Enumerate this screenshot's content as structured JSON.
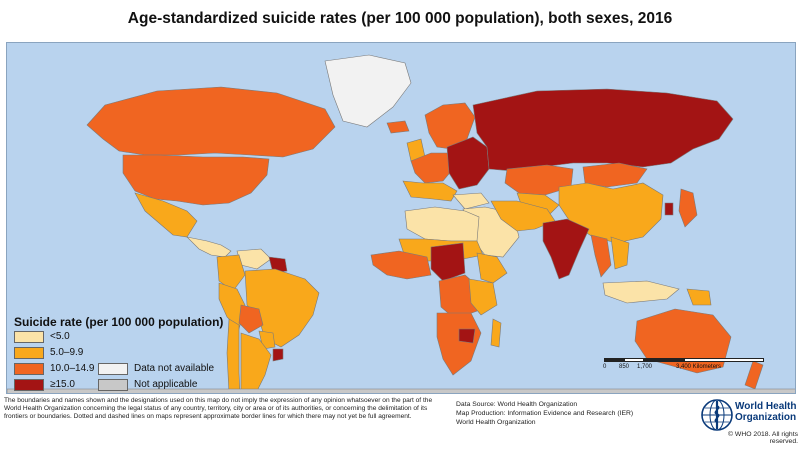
{
  "title": "Age-standardized suicide rates (per 100 000 population), both sexes, 2016",
  "legend": {
    "title": "Suicide rate (per 100 000 population)",
    "items": [
      {
        "label": "<5.0",
        "color": "#fbe3a8"
      },
      {
        "label": "5.0–9.9",
        "color": "#f9a81b"
      },
      {
        "label": "10.0–14.9",
        "color": "#f06521"
      },
      {
        "label": "≥15.0",
        "color": "#a31414"
      },
      {
        "label": "Data not available",
        "color": "#f2f2f2"
      },
      {
        "label": "Not applicable",
        "color": "#c8c8c8"
      }
    ]
  },
  "map": {
    "ocean_color": "#b9d3ee",
    "regions": [
      {
        "name": "Greenland",
        "category": "Data not available"
      },
      {
        "name": "Canada",
        "category": "10.0–14.9"
      },
      {
        "name": "United States of America",
        "category": "10.0–14.9"
      },
      {
        "name": "Mexico",
        "category": "5.0–9.9"
      },
      {
        "name": "Central America and Caribbean",
        "category": "<5.0"
      },
      {
        "name": "Venezuela",
        "category": "<5.0"
      },
      {
        "name": "Guyana and Suriname",
        "category": "≥15.0"
      },
      {
        "name": "Colombia and Ecuador",
        "category": "5.0–9.9"
      },
      {
        "name": "Peru",
        "category": "5.0–9.9"
      },
      {
        "name": "Brazil",
        "category": "5.0–9.9"
      },
      {
        "name": "Bolivia",
        "category": "10.0–14.9"
      },
      {
        "name": "Paraguay",
        "category": "5.0–9.9"
      },
      {
        "name": "Uruguay",
        "category": "≥15.0"
      },
      {
        "name": "Chile",
        "category": "5.0–9.9"
      },
      {
        "name": "Argentina",
        "category": "5.0–9.9"
      },
      {
        "name": "Iceland",
        "category": "10.0–14.9"
      },
      {
        "name": "United Kingdom and Ireland",
        "category": "5.0–9.9"
      },
      {
        "name": "Scandinavia",
        "category": "10.0–14.9"
      },
      {
        "name": "Western Europe",
        "category": "10.0–14.9"
      },
      {
        "name": "Southern Europe",
        "category": "5.0–9.9"
      },
      {
        "name": "Eastern Europe",
        "category": "≥15.0"
      },
      {
        "name": "Russian Federation",
        "category": "≥15.0"
      },
      {
        "name": "Kazakhstan",
        "category": "10.0–14.9"
      },
      {
        "name": "Central Asia",
        "category": "5.0–9.9"
      },
      {
        "name": "Mongolia",
        "category": "10.0–14.9"
      },
      {
        "name": "China",
        "category": "5.0–9.9"
      },
      {
        "name": "Japan",
        "category": "10.0–14.9"
      },
      {
        "name": "Republic of Korea",
        "category": "≥15.0"
      },
      {
        "name": "Turkey",
        "category": "<5.0"
      },
      {
        "name": "Middle East",
        "category": "<5.0"
      },
      {
        "name": "Iran and Afghanistan",
        "category": "5.0–9.9"
      },
      {
        "name": "India and South Asia",
        "category": "≥15.0"
      },
      {
        "name": "Myanmar and Thailand",
        "category": "10.0–14.9"
      },
      {
        "name": "Indochina",
        "category": "5.0–9.9"
      },
      {
        "name": "Indonesia and Philippines",
        "category": "<5.0"
      },
      {
        "name": "Papua New Guinea",
        "category": "5.0–9.9"
      },
      {
        "name": "North Africa",
        "category": "<5.0"
      },
      {
        "name": "Sahel",
        "category": "5.0–9.9"
      },
      {
        "name": "Nigeria and Chad",
        "category": "≥15.0"
      },
      {
        "name": "West Africa",
        "category": "10.0–14.9"
      },
      {
        "name": "Central Africa",
        "category": "10.0–14.9"
      },
      {
        "name": "Horn of Africa",
        "category": "5.0–9.9"
      },
      {
        "name": "East Africa",
        "category": "5.0–9.9"
      },
      {
        "name": "Southern Africa",
        "category": "10.0–14.9"
      },
      {
        "name": "Zimbabwe",
        "category": "≥15.0"
      },
      {
        "name": "Madagascar",
        "category": "5.0–9.9"
      },
      {
        "name": "Australia",
        "category": "10.0–14.9"
      },
      {
        "name": "New Zealand",
        "category": "10.0–14.9"
      },
      {
        "name": "Antarctica",
        "category": "Not applicable"
      }
    ]
  },
  "scalebar": {
    "labels": [
      "0",
      "850",
      "1,700",
      "3,400 Kilometers"
    ]
  },
  "disclaimer": "The boundaries and names shown and the designations used on this map do not imply the expression of any opinion whatsoever on the part of the World Health Organization concerning the legal status of any country, territory, city or area or of its authorities, or concerning the delimitation of its frontiers or boundaries. Dotted and dashed lines on maps represent approximate border lines for which there may not yet be full agreement.",
  "source": {
    "line1": "Data Source: World Health Organization",
    "line2": "Map Production: Information Evidence and Research (IER)",
    "line3": "World Health Organization"
  },
  "org": {
    "name_line1": "World Health",
    "name_line2": "Organization"
  },
  "copyright": "© WHO 2018. All rights reserved."
}
